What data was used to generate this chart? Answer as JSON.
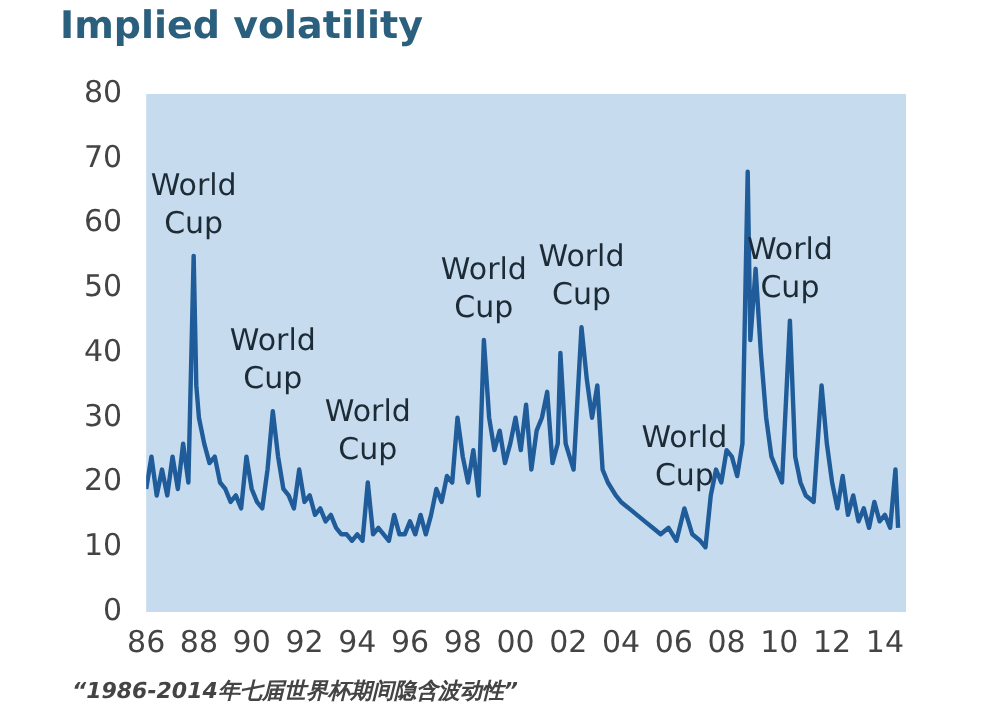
{
  "chart_data": {
    "type": "line",
    "title": "Implied volatility",
    "x": [
      1986.0,
      1986.2,
      1986.4,
      1986.6,
      1986.8,
      1987.0,
      1987.2,
      1987.4,
      1987.6,
      1987.8,
      1987.9,
      1988.0,
      1988.2,
      1988.4,
      1988.6,
      1988.8,
      1989.0,
      1989.2,
      1989.4,
      1989.6,
      1989.8,
      1990.0,
      1990.2,
      1990.4,
      1990.6,
      1990.8,
      1991.0,
      1991.2,
      1991.4,
      1991.6,
      1991.8,
      1992.0,
      1992.2,
      1992.4,
      1992.6,
      1992.8,
      1993.0,
      1993.2,
      1993.4,
      1993.6,
      1993.8,
      1994.0,
      1994.2,
      1994.4,
      1994.6,
      1994.8,
      1995.0,
      1995.2,
      1995.4,
      1995.6,
      1995.8,
      1996.0,
      1996.2,
      1996.4,
      1996.6,
      1996.8,
      1997.0,
      1997.2,
      1997.4,
      1997.6,
      1997.8,
      1998.0,
      1998.2,
      1998.4,
      1998.6,
      1998.8,
      1999.0,
      1999.2,
      1999.4,
      1999.6,
      1999.8,
      2000.0,
      2000.2,
      2000.4,
      2000.6,
      2000.8,
      2001.0,
      2001.2,
      2001.4,
      2001.6,
      2001.7,
      2001.9,
      2002.2,
      2002.5,
      2002.7,
      2002.9,
      2003.1,
      2003.3,
      2003.5,
      2003.8,
      2004.0,
      2004.3,
      2004.6,
      2004.9,
      2005.2,
      2005.5,
      2005.8,
      2006.1,
      2006.4,
      2006.7,
      2007.0,
      2007.2,
      2007.4,
      2007.6,
      2007.8,
      2008.0,
      2008.2,
      2008.4,
      2008.6,
      2008.8,
      2008.9,
      2009.1,
      2009.3,
      2009.5,
      2009.7,
      2009.9,
      2010.1,
      2010.4,
      2010.6,
      2010.8,
      2011.0,
      2011.3,
      2011.6,
      2011.8,
      2012.0,
      2012.2,
      2012.4,
      2012.6,
      2012.8,
      2013.0,
      2013.2,
      2013.4,
      2013.6,
      2013.8,
      2014.0,
      2014.2,
      2014.4,
      2014.5
    ],
    "series": [
      {
        "color": "#1f5c99",
        "values": [
          19,
          24,
          18,
          22,
          18,
          24,
          19,
          26,
          20,
          55,
          35,
          30,
          26,
          23,
          24,
          20,
          19,
          17,
          18,
          16,
          24,
          19,
          17,
          16,
          22,
          31,
          24,
          19,
          18,
          16,
          22,
          17,
          18,
          15,
          16,
          14,
          15,
          13,
          12,
          12,
          11,
          12,
          11,
          20,
          12,
          13,
          12,
          11,
          15,
          12,
          12,
          14,
          12,
          15,
          12,
          15,
          19,
          17,
          21,
          20,
          30,
          24,
          20,
          25,
          18,
          42,
          30,
          25,
          28,
          23,
          26,
          30,
          25,
          32,
          22,
          28,
          30,
          34,
          23,
          26,
          40,
          26,
          22,
          44,
          36,
          30,
          35,
          22,
          20,
          18,
          17,
          16,
          15,
          14,
          13,
          12,
          13,
          11,
          16,
          12,
          11,
          10,
          18,
          22,
          20,
          25,
          24,
          21,
          26,
          68,
          42,
          53,
          40,
          30,
          24,
          22,
          20,
          45,
          24,
          20,
          18,
          17,
          35,
          26,
          20,
          16,
          21,
          15,
          18,
          14,
          16,
          13,
          17,
          14,
          15,
          13,
          22,
          13
        ]
      }
    ],
    "xlim": [
      1986,
      2014.8
    ],
    "xticks": [
      {
        "value": 1986,
        "label": "86"
      },
      {
        "value": 1988,
        "label": "88"
      },
      {
        "value": 1990,
        "label": "90"
      },
      {
        "value": 1992,
        "label": "92"
      },
      {
        "value": 1994,
        "label": "94"
      },
      {
        "value": 1996,
        "label": "96"
      },
      {
        "value": 1998,
        "label": "98"
      },
      {
        "value": 2000,
        "label": "00"
      },
      {
        "value": 2002,
        "label": "02"
      },
      {
        "value": 2004,
        "label": "04"
      },
      {
        "value": 2006,
        "label": "06"
      },
      {
        "value": 2008,
        "label": "08"
      },
      {
        "value": 2010,
        "label": "10"
      },
      {
        "value": 2012,
        "label": "12"
      },
      {
        "value": 2014,
        "label": "14"
      }
    ],
    "ylim": [
      0,
      80
    ],
    "yticks": [
      0,
      10,
      20,
      30,
      40,
      50,
      60,
      70,
      80
    ],
    "marker": "none",
    "annotations": [
      {
        "text": "World Cup",
        "x": 1987.8,
        "y": 55
      },
      {
        "text": "World Cup",
        "x": 1990.8,
        "y": 31
      },
      {
        "text": "World Cup",
        "x": 1994.4,
        "y": 20
      },
      {
        "text": "World Cup",
        "x": 1998.8,
        "y": 42
      },
      {
        "text": "World Cup",
        "x": 2002.5,
        "y": 44
      },
      {
        "text": "World Cup",
        "x": 2006.4,
        "y": 16
      },
      {
        "text": "World Cup",
        "x": 2010.4,
        "y": 45
      },
      "“1986-2014年七届世界杯期间隐含波动性”"
    ]
  }
}
